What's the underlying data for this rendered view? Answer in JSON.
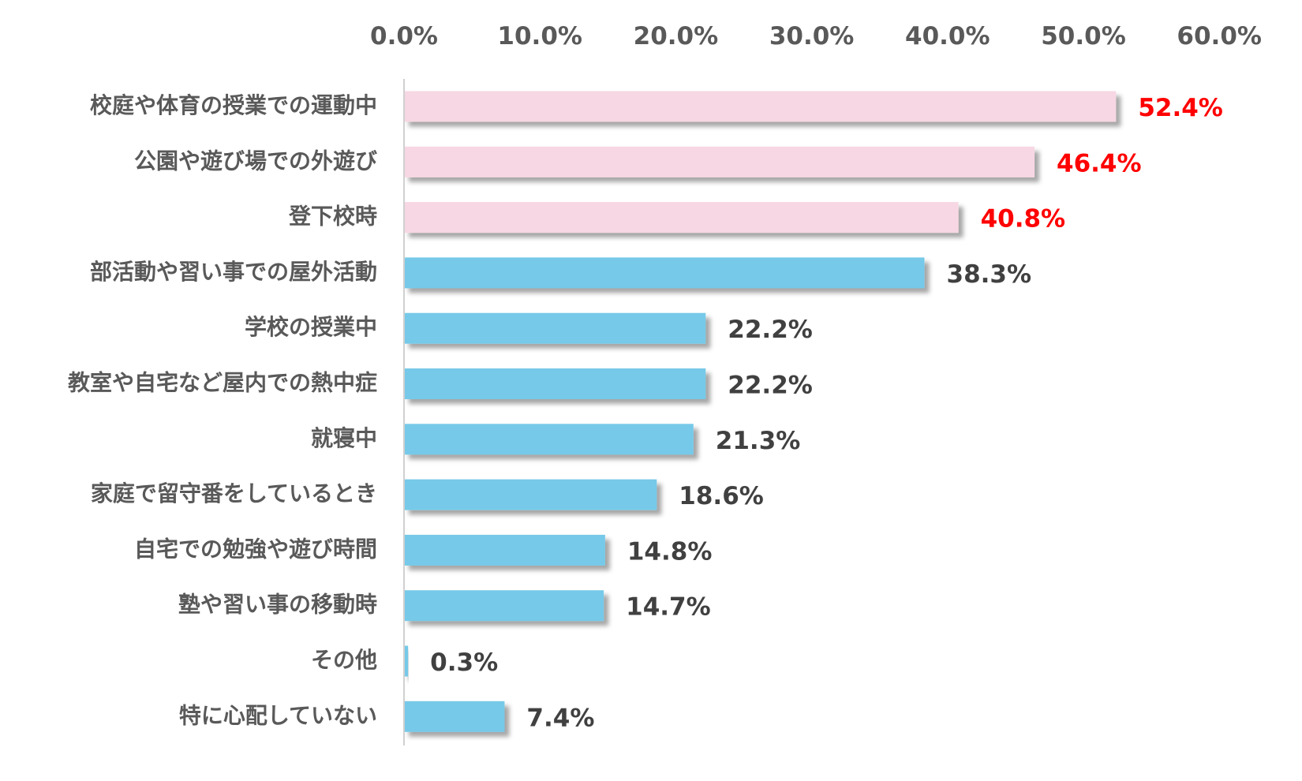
{
  "chart_data": {
    "type": "bar",
    "orientation": "horizontal",
    "title": "",
    "xlabel": "",
    "ylabel": "",
    "xlim": [
      0,
      60
    ],
    "tick_labels": [
      "0.0%",
      "10.0%",
      "20.0%",
      "30.0%",
      "40.0%",
      "50.0%",
      "60.0%"
    ],
    "categories": [
      "校庭や体育の授業での運動中",
      "公園や遊び場での外遊び",
      "登下校時",
      "部活動や習い事での屋外活動",
      "学校の授業中",
      "教室や自宅など屋内での熱中症",
      "就寝中",
      "家庭で留守番をしているとき",
      "自宅での勉強や遊び時間",
      "塾や習い事の移動時",
      "その他",
      "特に心配していない"
    ],
    "values": [
      52.4,
      46.4,
      40.8,
      38.3,
      22.2,
      22.2,
      21.3,
      18.6,
      14.8,
      14.7,
      0.3,
      7.4
    ],
    "value_labels": [
      "52.4%",
      "46.4%",
      "40.8%",
      "38.3%",
      "22.2%",
      "22.2%",
      "21.3%",
      "18.6%",
      "14.8%",
      "14.7%",
      "0.3%",
      "7.4%"
    ],
    "highlight_top_n": 3,
    "grid": false,
    "legend": "none",
    "colors": {
      "highlight_bar": "#f7d7e3",
      "normal_bar": "#76c9e8",
      "highlight_label": "#ff0000",
      "normal_label": "#404040",
      "axis": "#d0d0d0"
    }
  }
}
